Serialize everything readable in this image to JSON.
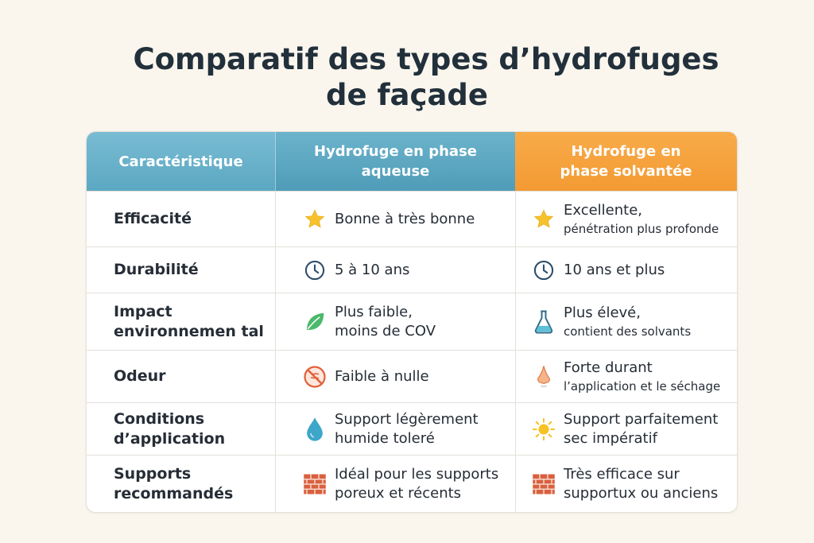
{
  "title": {
    "line1": "Comparatif des types d’hydrofuges",
    "line2": "de façade"
  },
  "headers": {
    "col1": "Caractéristique",
    "col2": [
      "Hydrofuge en phase",
      "aqueuse"
    ],
    "col3": [
      "Hydrofuge en",
      "phase solvantée"
    ]
  },
  "colors": {
    "header_blue": "#5ba7c2",
    "header_orange": "#f39a33"
  },
  "rows": [
    {
      "label": [
        "Efficacité"
      ],
      "aqueous": {
        "icon": "star-icon",
        "text": [
          "Bonne à très bonne"
        ]
      },
      "solvent": {
        "icon": "star-icon",
        "text": [
          "Excellente,"
        ],
        "small": "pénétration plus profonde"
      }
    },
    {
      "label": [
        "Durabilité"
      ],
      "aqueous": {
        "icon": "clock-icon",
        "text": [
          "5 à 10 ans"
        ]
      },
      "solvent": {
        "icon": "clock-icon",
        "text": [
          "10 ans et plus"
        ]
      }
    },
    {
      "label": [
        "Impact",
        "environnemen tal"
      ],
      "aqueous": {
        "icon": "leaf-icon",
        "text": [
          "Plus faible,",
          "moins de COV"
        ]
      },
      "solvent": {
        "icon": "flask-icon",
        "text": [
          "Plus élevé,"
        ],
        "small": "contient des solvants"
      }
    },
    {
      "label": [
        "Odeur"
      ],
      "aqueous": {
        "icon": "no-smell-icon",
        "text": [
          "Faible à nulle"
        ]
      },
      "solvent": {
        "icon": "nose-icon",
        "text": [
          "Forte durant"
        ],
        "small": "l’application et le séchage"
      }
    },
    {
      "label": [
        "Conditions",
        "d’application"
      ],
      "aqueous": {
        "icon": "water-drop-icon",
        "text": [
          "Support légèrement",
          "humide toleré"
        ]
      },
      "solvent": {
        "icon": "sun-icon",
        "text": [
          "Support parfaitement",
          "sec impératif"
        ]
      }
    },
    {
      "label": [
        "Supports",
        "recommandés"
      ],
      "aqueous": {
        "icon": "brick-icon",
        "text": [
          "Idéal pour les supports",
          "poreux et récents"
        ]
      },
      "solvent": {
        "icon": "brick-icon",
        "text": [
          "Très efficace sur",
          "supportux ou anciens"
        ]
      }
    }
  ]
}
